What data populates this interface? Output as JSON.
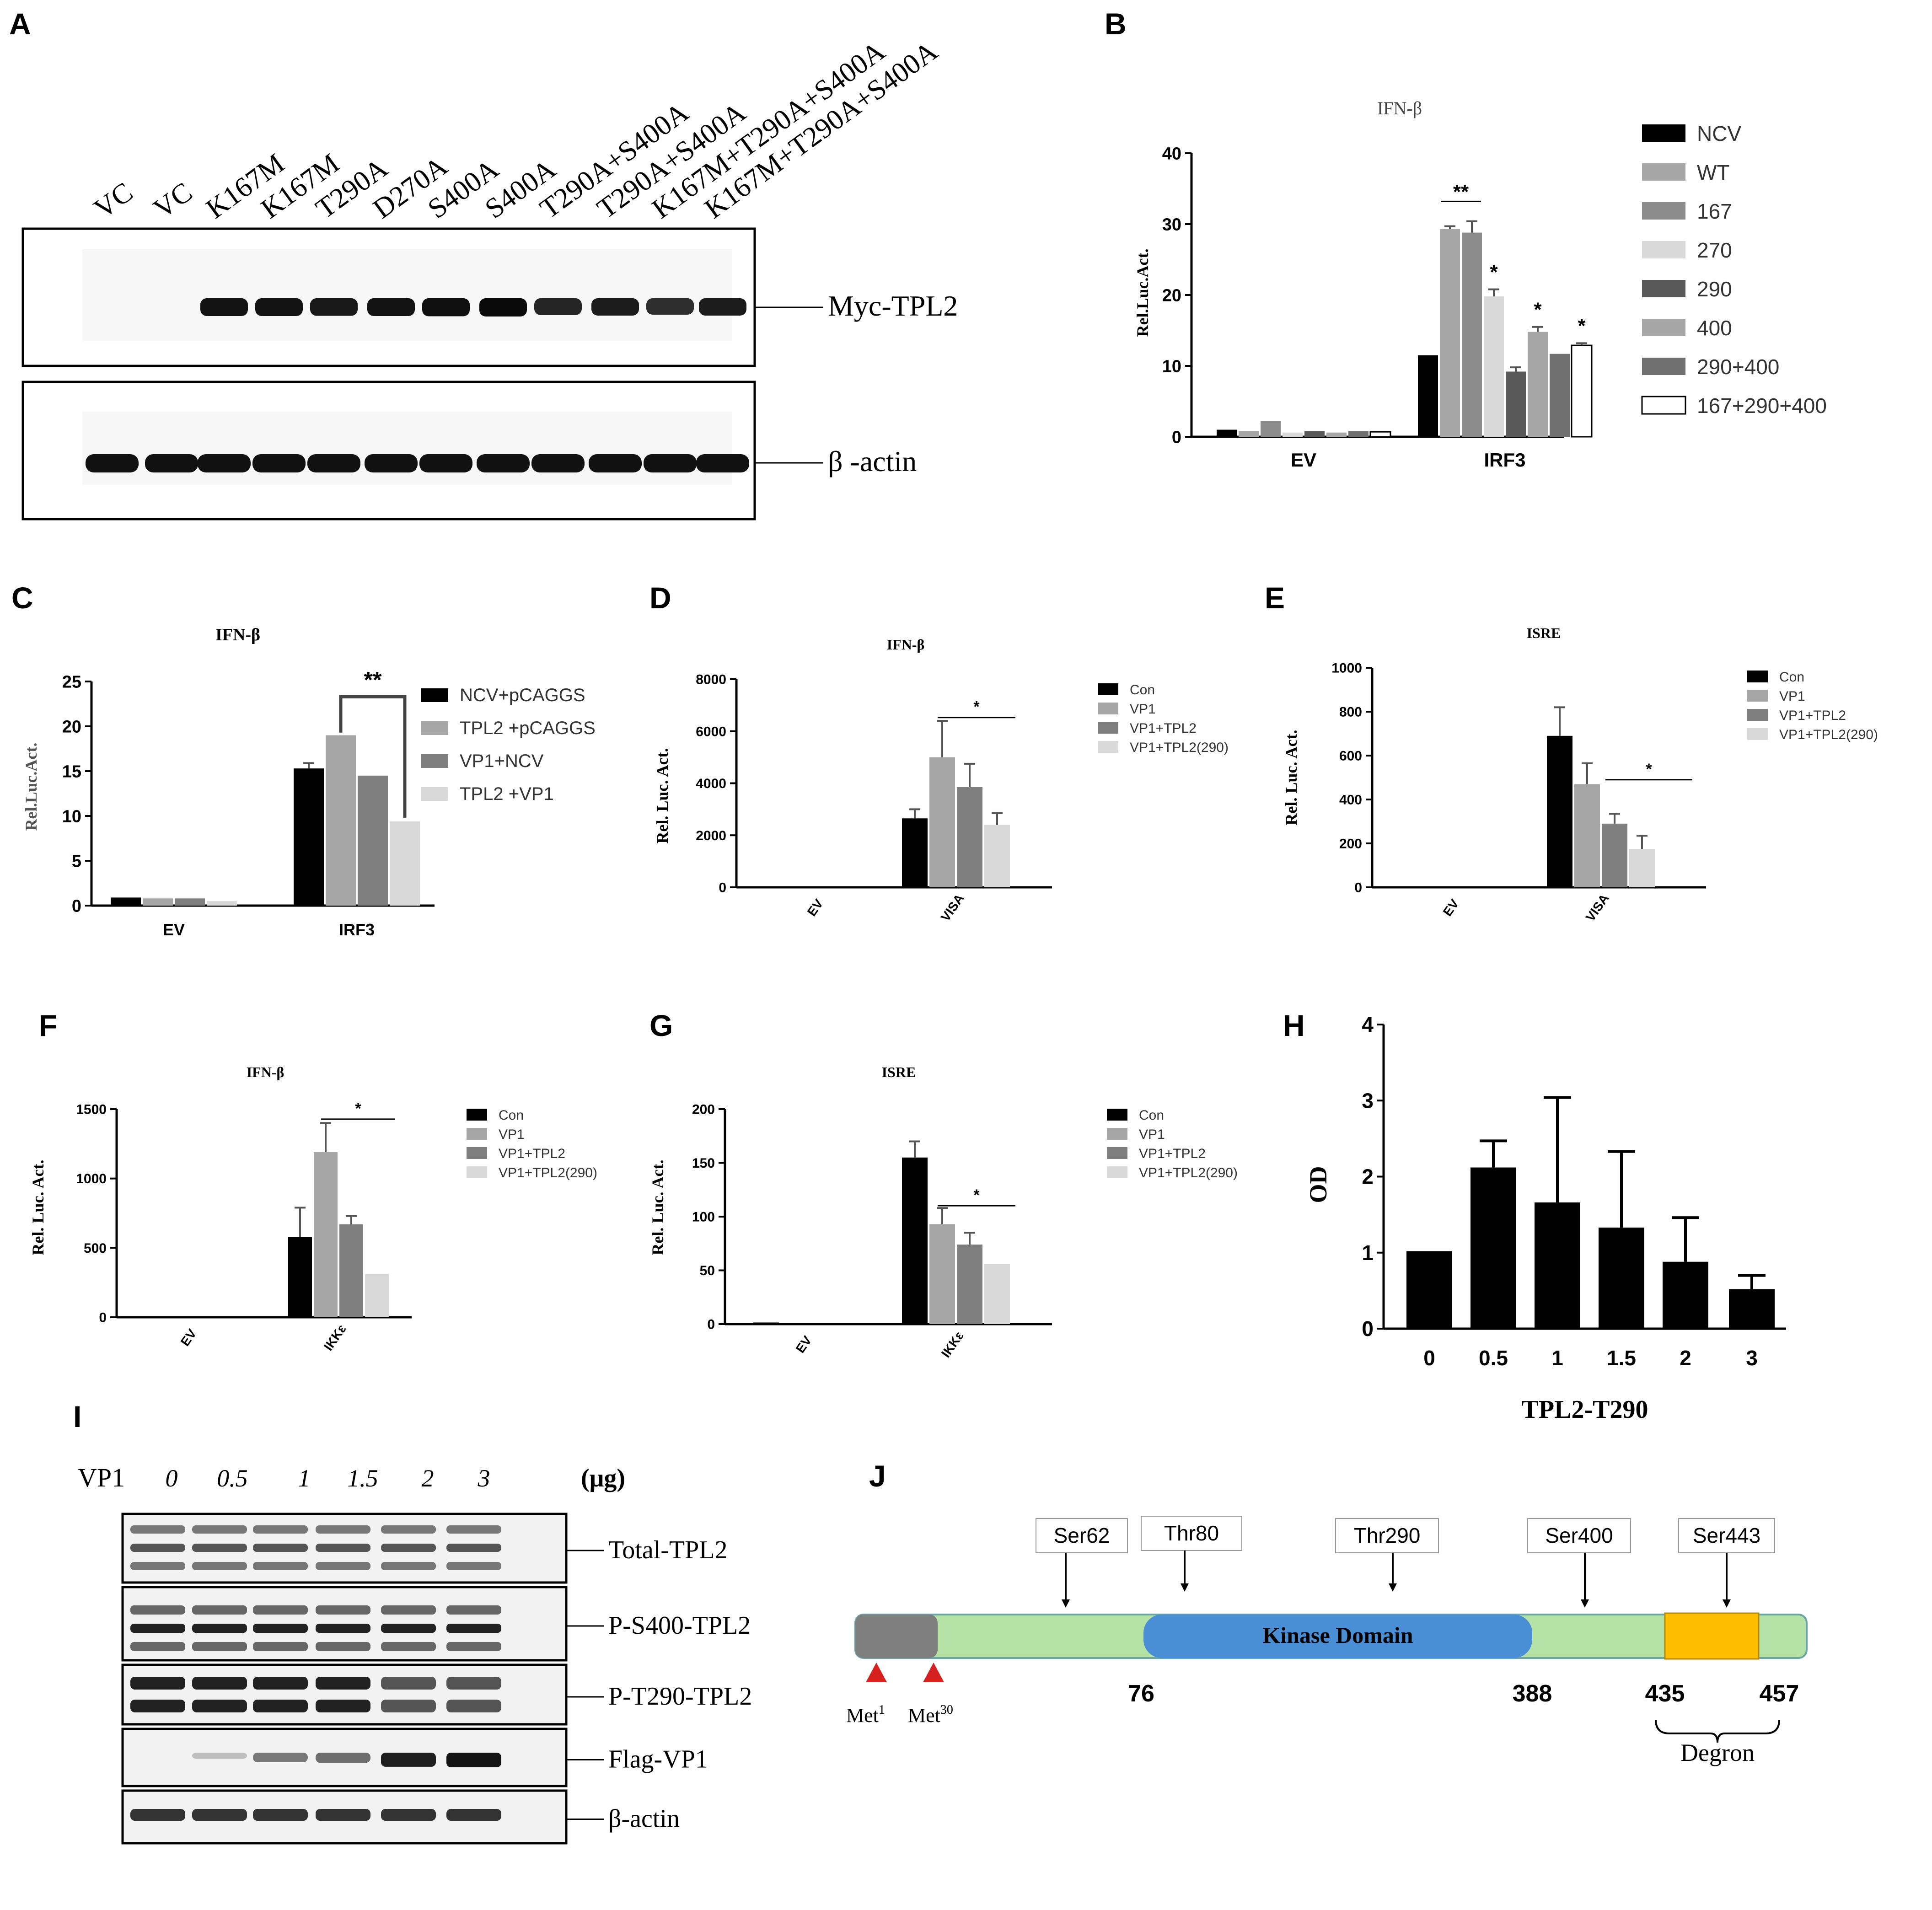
{
  "figure": {
    "panels": {
      "A": {
        "letter": "A",
        "lane_labels": [
          "VC",
          "VC",
          "K167M",
          "K167M",
          "T290A",
          "D270A",
          "S400A",
          "S400A",
          "T290A+S400A",
          "T290A+S400A",
          "K167M+T290A+S400A",
          "K167M+T290A+S400A"
        ],
        "band_labels": [
          "Myc-TPL2",
          "β -actin"
        ],
        "myc_intensity": [
          0,
          0,
          0.9,
          0.9,
          0.85,
          0.9,
          0.95,
          1.0,
          0.7,
          0.8,
          0.6,
          0.8
        ],
        "actin_intensity": [
          1,
          1,
          1,
          1,
          1,
          1,
          1,
          1,
          1,
          1,
          1,
          1
        ]
      },
      "I": {
        "letter": "I",
        "row_label": "VP1",
        "doses": [
          "0",
          "0.5",
          "1",
          "1.5",
          "2",
          "3"
        ],
        "unit": "(μg)",
        "blots": [
          "Total-TPL2",
          "P-S400-TPL2",
          "P-T290-TPL2",
          "Flag-VP1",
          "β-actin"
        ],
        "flag_intensity": [
          0,
          0.15,
          0.5,
          0.55,
          0.95,
          1.0
        ]
      },
      "J": {
        "letter": "J",
        "sites": [
          "Ser62",
          "Thr80",
          "Thr290",
          "Ser400",
          "Ser443"
        ],
        "domain_label": "Kinase Domain",
        "positions": [
          "76",
          "388",
          "435",
          "457"
        ],
        "met_labels": [
          "Met",
          "Met"
        ],
        "met_superscripts": [
          "1",
          "30"
        ],
        "degron_label": "Degron",
        "colors": {
          "gray": "#7f7f7f",
          "green": "#b5e2a6",
          "blue": "#4a8fd6",
          "orange": "#ffbf00",
          "arrow": "#d62020"
        }
      }
    }
  },
  "chart_data": [
    {
      "panel": "B",
      "type": "bar",
      "title": "IFN-β",
      "xlabel": "",
      "ylabel": "Rel.Luc.Act.",
      "ylim": [
        0,
        40
      ],
      "yticks": [
        "0",
        "10",
        "20",
        "30",
        "40"
      ],
      "categories": [
        "EV",
        "IRF3"
      ],
      "legend_position": "right",
      "series": [
        {
          "name": "NCV",
          "color": "#000000",
          "values": [
            1.0,
            11.5
          ],
          "errors": [
            0,
            0
          ]
        },
        {
          "name": "WT",
          "color": "#a6a6a6",
          "values": [
            0.8,
            29.3
          ],
          "errors": [
            0,
            0.4
          ]
        },
        {
          "name": "167",
          "color": "#8c8c8c",
          "values": [
            2.2,
            28.8
          ],
          "errors": [
            0,
            1.6
          ]
        },
        {
          "name": "270",
          "color": "#d9d9d9",
          "values": [
            0.6,
            19.8
          ],
          "errors": [
            0,
            1.0
          ]
        },
        {
          "name": "290",
          "color": "#595959",
          "values": [
            0.8,
            9.2
          ],
          "errors": [
            0,
            0.6
          ]
        },
        {
          "name": "400",
          "color": "#a6a6a6",
          "values": [
            0.6,
            14.8
          ],
          "errors": [
            0,
            0.7
          ]
        },
        {
          "name": "290+400",
          "color": "#707070",
          "values": [
            0.8,
            11.7
          ],
          "errors": [
            0,
            0
          ]
        },
        {
          "name": "167+290+400",
          "color": "#ffffff",
          "values": [
            0.7,
            12.9
          ],
          "errors": [
            0,
            0.3
          ]
        }
      ],
      "annotations": [
        "**",
        "*",
        "*",
        "*"
      ]
    },
    {
      "panel": "C",
      "type": "bar",
      "title": "IFN-β",
      "xlabel": "",
      "ylabel": "Rel.Luc.Act.",
      "ylim": [
        0,
        25
      ],
      "yticks": [
        "0",
        "5",
        "10",
        "15",
        "20",
        "25"
      ],
      "categories": [
        "EV",
        "IRF3"
      ],
      "legend_position": "right",
      "series": [
        {
          "name": "NCV+pCAGGS",
          "color": "#000000",
          "values": [
            0.9,
            15.3
          ],
          "errors": [
            0,
            0.6
          ]
        },
        {
          "name": "TPL2 +pCAGGS",
          "color": "#a6a6a6",
          "values": [
            0.8,
            19.0
          ],
          "errors": [
            0,
            0
          ]
        },
        {
          "name": "VP1+NCV",
          "color": "#7f7f7f",
          "values": [
            0.8,
            14.5
          ],
          "errors": [
            0,
            0
          ]
        },
        {
          "name": "TPL2 +VP1",
          "color": "#d9d9d9",
          "values": [
            0.5,
            9.4
          ],
          "errors": [
            0,
            0
          ]
        }
      ],
      "annotations": [
        "**"
      ]
    },
    {
      "panel": "D",
      "type": "bar",
      "title": "IFN-β",
      "xlabel": "",
      "ylabel": "Rel. Luc. Act.",
      "ylim": [
        0,
        8000
      ],
      "yticks": [
        "0",
        "2000",
        "4000",
        "6000",
        "8000"
      ],
      "categories": [
        "EV",
        "VISA"
      ],
      "legend_position": "right",
      "series": [
        {
          "name": "Con",
          "color": "#000000",
          "values": [
            0,
            2650
          ],
          "errors": [
            0,
            350
          ]
        },
        {
          "name": "VP1",
          "color": "#a6a6a6",
          "values": [
            0,
            5000
          ],
          "errors": [
            0,
            1400
          ]
        },
        {
          "name": "VP1+TPL2",
          "color": "#7f7f7f",
          "values": [
            0,
            3850
          ],
          "errors": [
            0,
            900
          ]
        },
        {
          "name": "VP1+TPL2(290)",
          "color": "#d9d9d9",
          "values": [
            0,
            2400
          ],
          "errors": [
            0,
            450
          ]
        }
      ],
      "annotations": [
        "*"
      ]
    },
    {
      "panel": "E",
      "type": "bar",
      "title": "ISRE",
      "xlabel": "",
      "ylabel": "Rel. Luc. Act.",
      "ylim": [
        0,
        1000
      ],
      "yticks": [
        "0",
        "200",
        "400",
        "600",
        "800",
        "1000"
      ],
      "categories": [
        "EV",
        "VISA"
      ],
      "legend_position": "right",
      "series": [
        {
          "name": "Con",
          "color": "#000000",
          "values": [
            0,
            690
          ],
          "errors": [
            0,
            130
          ]
        },
        {
          "name": "VP1",
          "color": "#a6a6a6",
          "values": [
            0,
            470
          ],
          "errors": [
            0,
            95
          ]
        },
        {
          "name": "VP1+TPL2",
          "color": "#7f7f7f",
          "values": [
            0,
            290
          ],
          "errors": [
            0,
            45
          ]
        },
        {
          "name": "VP1+TPL2(290)",
          "color": "#d9d9d9",
          "values": [
            0,
            175
          ],
          "errors": [
            0,
            60
          ]
        }
      ],
      "annotations": [
        "*"
      ]
    },
    {
      "panel": "F",
      "type": "bar",
      "title": "IFN-β",
      "xlabel": "",
      "ylabel": "Rel. Luc. Act.",
      "ylim": [
        0,
        1500
      ],
      "yticks": [
        "0",
        "500",
        "1000",
        "1500"
      ],
      "categories": [
        "EV",
        "IKKε"
      ],
      "legend_position": "right",
      "series": [
        {
          "name": "Con",
          "color": "#000000",
          "values": [
            0,
            580
          ],
          "errors": [
            0,
            210
          ]
        },
        {
          "name": "VP1",
          "color": "#a6a6a6",
          "values": [
            0,
            1190
          ],
          "errors": [
            0,
            210
          ]
        },
        {
          "name": "VP1+TPL2",
          "color": "#7f7f7f",
          "values": [
            0,
            670
          ],
          "errors": [
            0,
            60
          ]
        },
        {
          "name": "VP1+TPL2(290)",
          "color": "#d9d9d9",
          "values": [
            0,
            310
          ],
          "errors": [
            0,
            0
          ]
        }
      ],
      "annotations": [
        "*"
      ]
    },
    {
      "panel": "G",
      "type": "bar",
      "title": "ISRE",
      "xlabel": "",
      "ylabel": "Rel. Luc. Act.",
      "ylim": [
        0,
        200
      ],
      "yticks": [
        "0",
        "50",
        "100",
        "150",
        "200"
      ],
      "categories": [
        "EV",
        "IKKε"
      ],
      "legend_position": "right",
      "series": [
        {
          "name": "Con",
          "color": "#000000",
          "values": [
            1.5,
            155
          ],
          "errors": [
            0,
            15
          ]
        },
        {
          "name": "VP1",
          "color": "#a6a6a6",
          "values": [
            0,
            93
          ],
          "errors": [
            0,
            15
          ]
        },
        {
          "name": "VP1+TPL2",
          "color": "#7f7f7f",
          "values": [
            0,
            74
          ],
          "errors": [
            0,
            11
          ]
        },
        {
          "name": "VP1+TPL2(290)",
          "color": "#d9d9d9",
          "values": [
            0,
            56
          ],
          "errors": [
            0,
            0
          ]
        }
      ],
      "annotations": [
        "*"
      ]
    },
    {
      "panel": "H",
      "type": "bar",
      "title": "",
      "xlabel": "TPL2-T290",
      "ylabel": "OD",
      "ylim": [
        0,
        4
      ],
      "yticks": [
        "0",
        "1",
        "2",
        "3",
        "4"
      ],
      "categories": [
        "0",
        "0.5",
        "1",
        "1.5",
        "2",
        "3"
      ],
      "series": [
        {
          "name": "",
          "color": "#000000",
          "values": [
            1.02,
            2.12,
            1.66,
            1.33,
            0.88,
            0.52
          ],
          "errors": [
            0,
            0.35,
            1.38,
            1.0,
            0.58,
            0.18
          ]
        }
      ]
    }
  ]
}
